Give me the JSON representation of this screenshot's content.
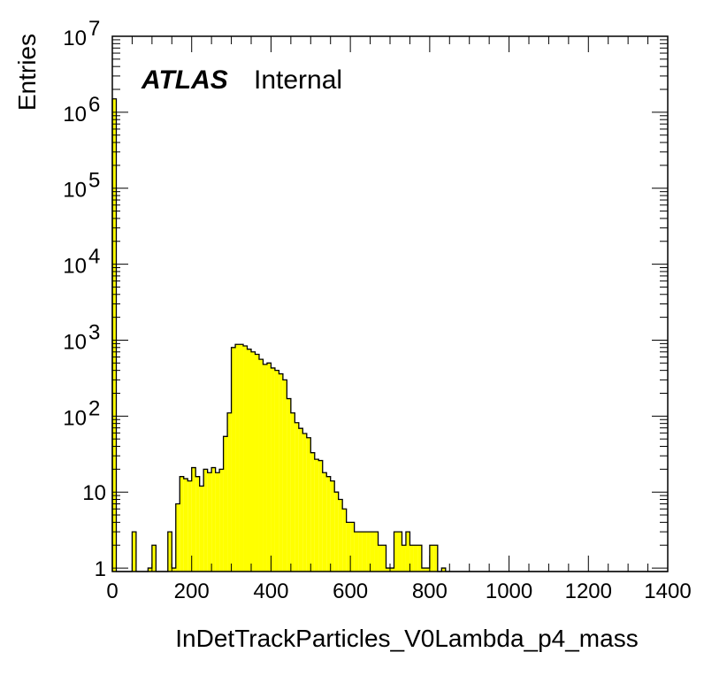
{
  "chart_data": {
    "type": "bar",
    "histogram": true,
    "fill_color": "#ffff00",
    "line_color": "#000000",
    "xlabel": "InDetTrackParticles_V0Lambda_p4_mass",
    "ylabel": "Entries",
    "xlim": [
      0,
      1400
    ],
    "ylim": [
      0.9,
      10000000
    ],
    "ylog": true,
    "grid": false,
    "bin_width": 10,
    "bin_start": 0,
    "values": [
      1500000,
      0,
      0,
      0,
      0,
      3,
      0,
      0,
      0,
      1,
      2,
      0,
      0,
      0,
      3,
      1,
      7,
      16,
      15,
      14,
      21,
      16,
      12,
      20,
      18,
      21,
      18,
      20,
      54,
      110,
      800,
      880,
      880,
      840,
      760,
      700,
      650,
      560,
      480,
      500,
      430,
      400,
      360,
      300,
      170,
      110,
      82,
      69,
      59,
      52,
      33,
      27,
      26,
      18,
      16,
      14,
      10,
      8,
      6,
      4,
      4,
      3,
      3,
      3,
      3,
      3,
      3,
      2,
      2,
      1,
      1,
      3,
      3,
      2,
      3,
      2,
      2,
      2,
      1,
      1,
      2,
      2,
      0,
      1,
      0,
      0,
      0,
      0,
      0,
      0,
      0,
      0,
      0,
      0,
      0,
      0,
      0,
      0,
      0,
      0,
      0,
      0,
      0,
      0,
      0,
      0,
      0,
      0,
      0,
      0,
      0,
      0,
      0,
      0,
      0,
      0,
      0,
      0,
      0,
      0,
      0,
      0,
      0,
      0,
      0,
      0,
      0,
      0,
      0,
      0,
      0,
      0,
      0,
      0,
      0,
      0,
      0,
      0,
      0,
      0
    ],
    "x_ticks": [
      {
        "value": 0,
        "label": "0"
      },
      {
        "value": 200,
        "label": "200"
      },
      {
        "value": 400,
        "label": "400"
      },
      {
        "value": 600,
        "label": "600"
      },
      {
        "value": 800,
        "label": "800"
      },
      {
        "value": 1000,
        "label": "1000"
      },
      {
        "value": 1200,
        "label": "1200"
      },
      {
        "value": 1400,
        "label": "1400"
      }
    ],
    "y_ticks": [
      {
        "value": 1,
        "base": "1",
        "exp": ""
      },
      {
        "value": 10,
        "base": "10",
        "exp": ""
      },
      {
        "value": 100,
        "base": "10",
        "exp": "2"
      },
      {
        "value": 1000,
        "base": "10",
        "exp": "3"
      },
      {
        "value": 10000,
        "base": "10",
        "exp": "4"
      },
      {
        "value": 100000,
        "base": "10",
        "exp": "5"
      },
      {
        "value": 1000000,
        "base": "10",
        "exp": "6"
      },
      {
        "value": 10000000,
        "base": "10",
        "exp": "7"
      }
    ],
    "annotation": {
      "atlas": "ATLAS",
      "status": "Internal"
    }
  }
}
